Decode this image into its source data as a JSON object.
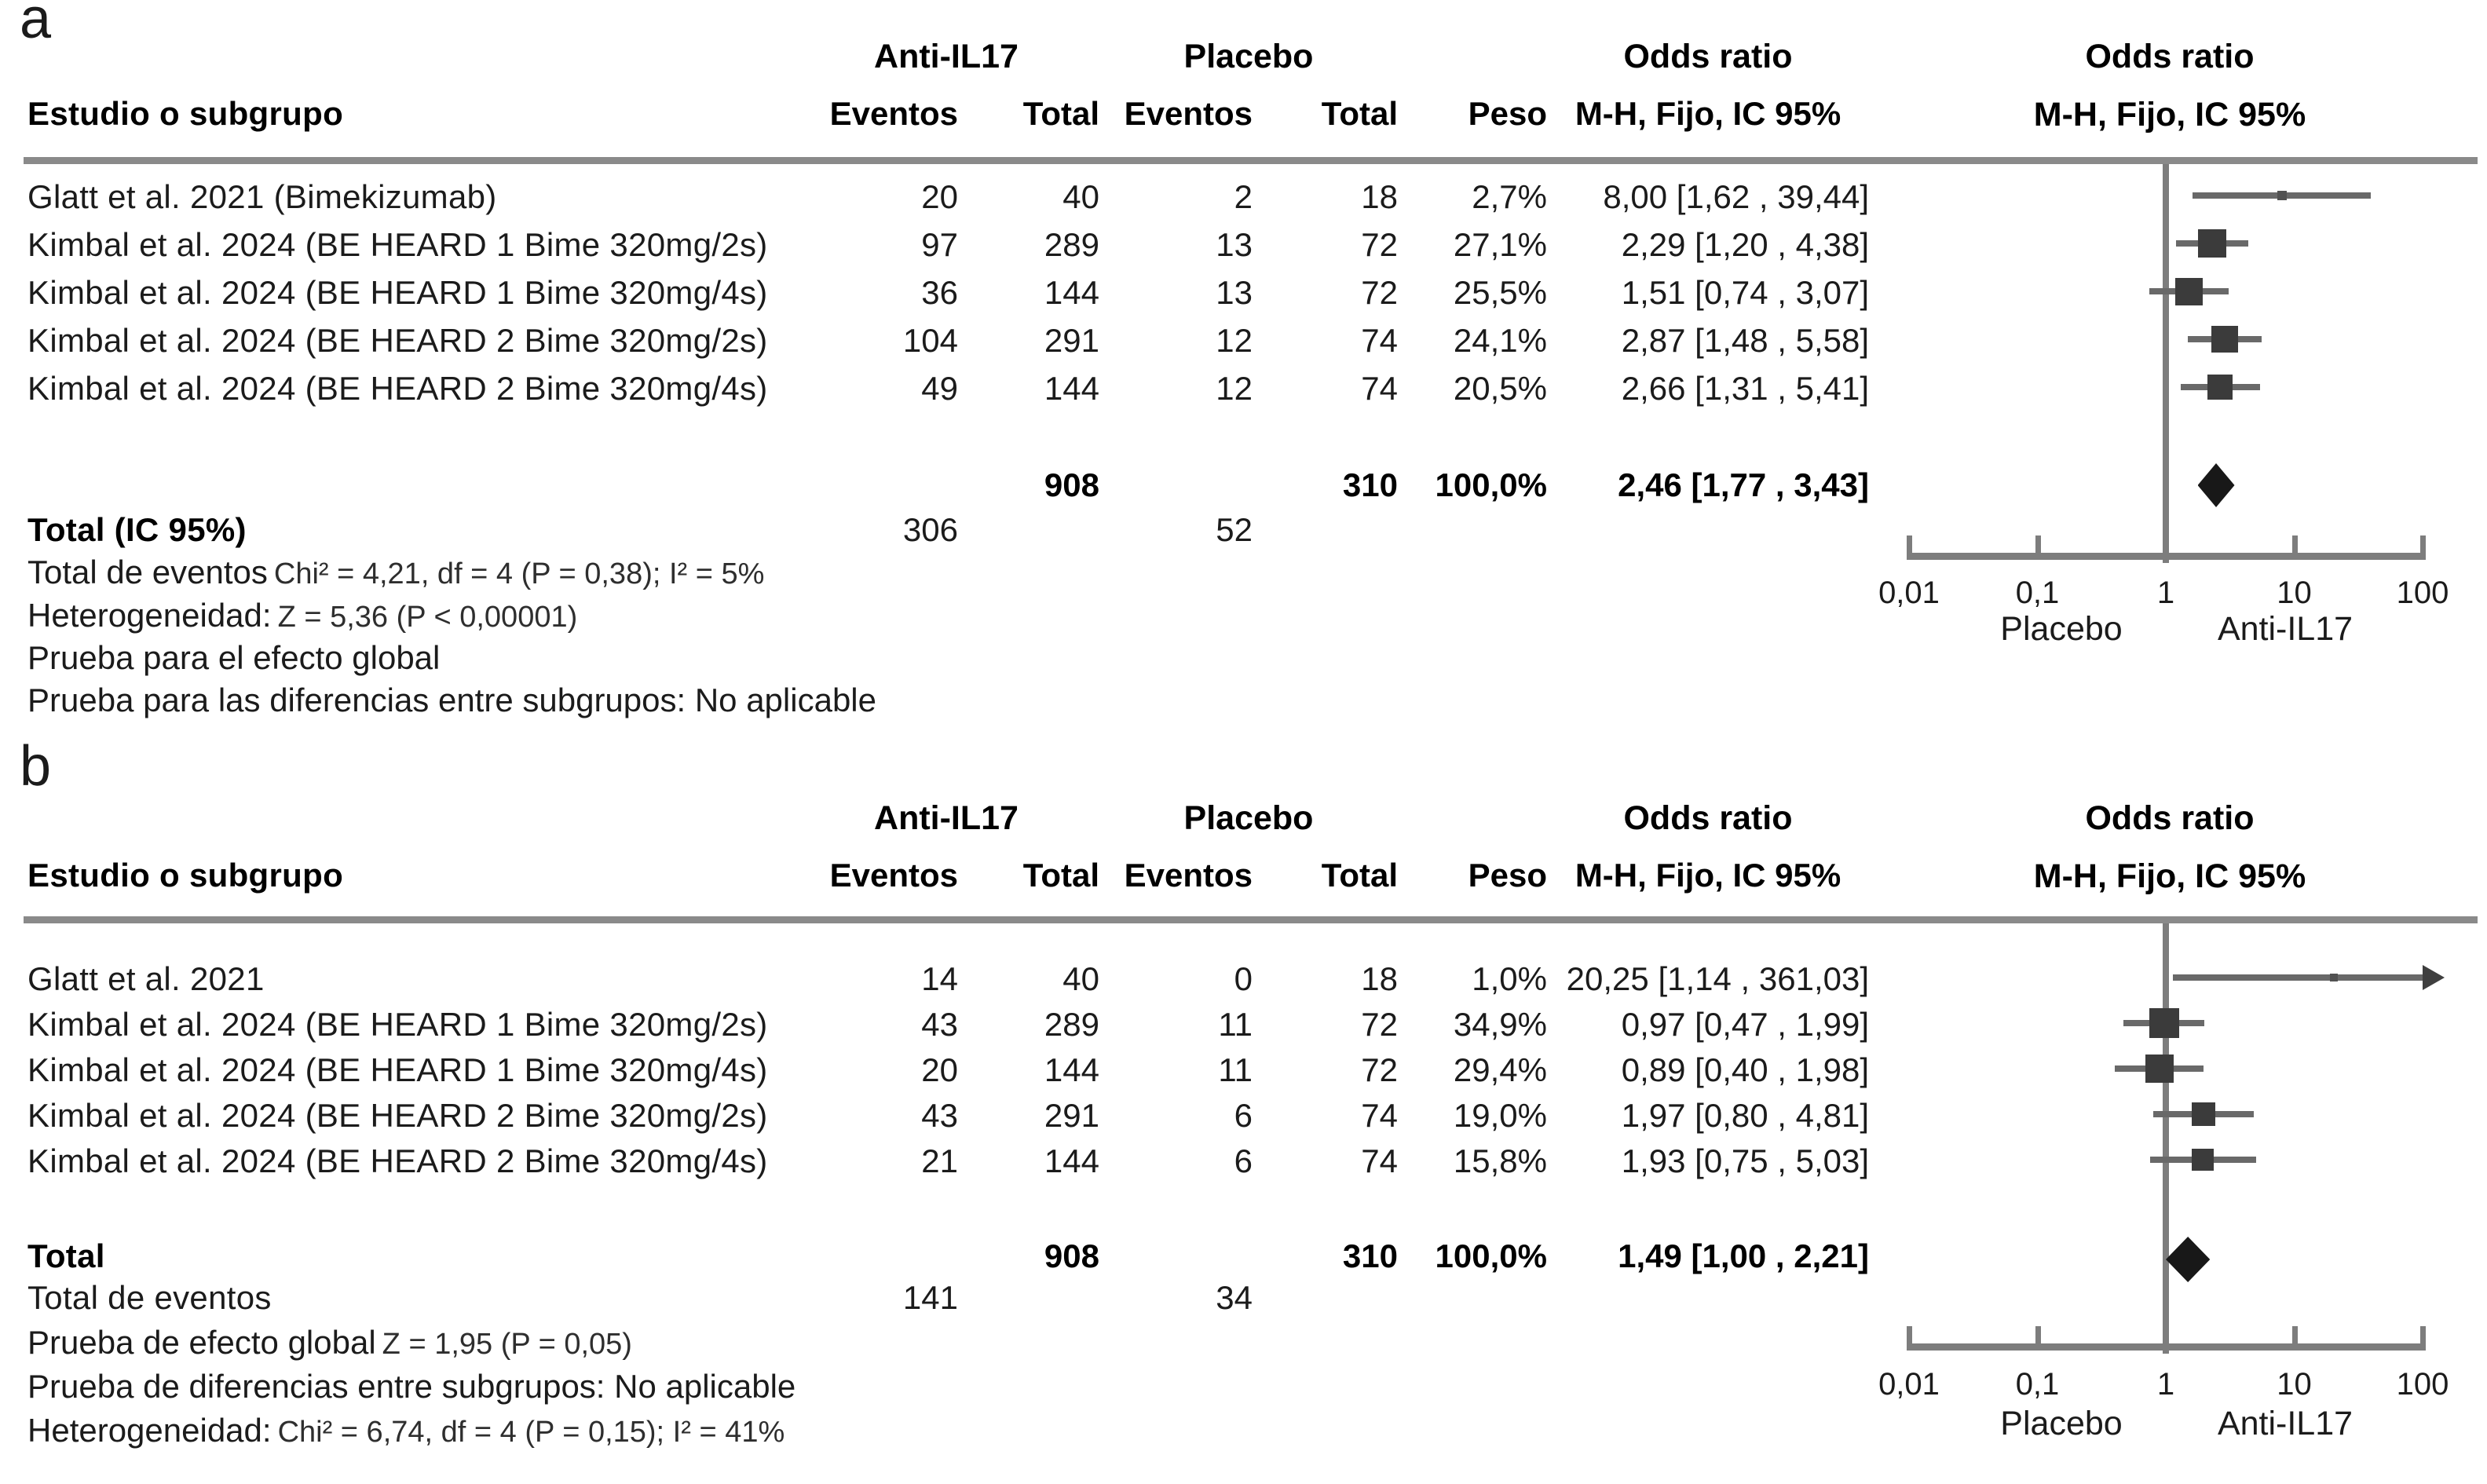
{
  "figure": {
    "panel_a_label": "a",
    "panel_b_label": "b",
    "columns": {
      "study": "Estudio o subgrupo",
      "group1": "Anti-IL17",
      "group2": "Placebo",
      "events": "Eventos",
      "total": "Total",
      "weight": "Peso",
      "or_title": "Odds ratio",
      "or_sub": "M-H, Fijo, IC 95%"
    },
    "axis": {
      "ticks": [
        "0,01",
        "0,1",
        "1",
        "10",
        "100"
      ],
      "left_label": "Placebo",
      "right_label": "Anti-IL17"
    },
    "colors": {
      "rule_gray": "#8a8a8a",
      "line_gray": "#7d7d7d",
      "ci_gray": "#696969",
      "square_dark": "#3b3b3b",
      "diamond_black": "#181818"
    }
  },
  "chart_data": [
    {
      "type": "forest",
      "panel": "a",
      "scale": "log10",
      "axis_range": [
        0.01,
        100
      ],
      "axis_ticks": [
        0.01,
        0.1,
        1,
        10,
        100
      ],
      "rows": [
        {
          "study": "Glatt et al. 2021 (Bimekizumab)",
          "events_t": "20",
          "total_t": "40",
          "events_c": "2",
          "total_c": "18",
          "weight": "2,7%",
          "or_text": "8,00 [1,62 , 39,44]",
          "or": 8.0,
          "lo": 1.62,
          "hi": 39.44
        },
        {
          "study": "Kimbal et al. 2024 (BE HEARD 1 Bime 320mg/2s)",
          "events_t": "97",
          "total_t": "289",
          "events_c": "13",
          "total_c": "72",
          "weight": "27,1%",
          "or_text": "2,29 [1,20 , 4,38]",
          "or": 2.29,
          "lo": 1.2,
          "hi": 4.38
        },
        {
          "study": "Kimbal et al. 2024 (BE HEARD 1 Bime 320mg/4s)",
          "events_t": "36",
          "total_t": "144",
          "events_c": "13",
          "total_c": "72",
          "weight": "25,5%",
          "or_text": "1,51 [0,74 , 3,07]",
          "or": 1.51,
          "lo": 0.74,
          "hi": 3.07
        },
        {
          "study": "Kimbal et al. 2024 (BE HEARD 2 Bime 320mg/2s)",
          "events_t": "104",
          "total_t": "291",
          "events_c": "12",
          "total_c": "74",
          "weight": "24,1%",
          "or_text": "2,87 [1,48 , 5,58]",
          "or": 2.87,
          "lo": 1.48,
          "hi": 5.58
        },
        {
          "study": "Kimbal et al. 2024 (BE HEARD 2 Bime 320mg/4s)",
          "events_t": "49",
          "total_t": "144",
          "events_c": "12",
          "total_c": "74",
          "weight": "20,5%",
          "or_text": "2,66 [1,31 , 5,41]",
          "or": 2.66,
          "lo": 1.31,
          "hi": 5.41
        }
      ],
      "total_row": {
        "label": "",
        "total_t": "908",
        "total_c": "310",
        "weight": "100,0%",
        "or_text": "2,46 [1,77 , 3,43]",
        "or": 2.46,
        "lo": 1.77,
        "hi": 3.43
      },
      "events_row": {
        "label": "Total (IC 95%)",
        "events_t": "306",
        "events_c": "52"
      },
      "footer": [
        {
          "label": "Total de eventos",
          "stats": "Chi² = 4,21, df = 4 (P = 0,38); I² = 5%"
        },
        {
          "label": "Heterogeneidad:",
          "stats": "Z = 5,36 (P < 0,00001)"
        },
        {
          "label": "Prueba para el efecto global",
          "stats": ""
        },
        {
          "label": "Prueba para las diferencias entre subgrupos: No aplicable",
          "stats": ""
        }
      ]
    },
    {
      "type": "forest",
      "panel": "b",
      "scale": "log10",
      "axis_range": [
        0.01,
        100
      ],
      "axis_ticks": [
        0.01,
        0.1,
        1,
        10,
        100
      ],
      "rows": [
        {
          "study": "Glatt et al. 2021",
          "events_t": "14",
          "total_t": "40",
          "events_c": "0",
          "total_c": "18",
          "weight": "1,0%",
          "or_text": "20,25 [1,14 , 361,03]",
          "or": 20.25,
          "lo": 1.14,
          "hi": 361.03
        },
        {
          "study": "Kimbal et al. 2024 (BE HEARD 1 Bime 320mg/2s)",
          "events_t": "43",
          "total_t": "289",
          "events_c": "11",
          "total_c": "72",
          "weight": "34,9%",
          "or_text": "0,97 [0,47 , 1,99]",
          "or": 0.97,
          "lo": 0.47,
          "hi": 1.99
        },
        {
          "study": "Kimbal et al. 2024 (BE HEARD 1 Bime 320mg/4s)",
          "events_t": "20",
          "total_t": "144",
          "events_c": "11",
          "total_c": "72",
          "weight": "29,4%",
          "or_text": "0,89 [0,40 , 1,98]",
          "or": 0.89,
          "lo": 0.4,
          "hi": 1.98
        },
        {
          "study": "Kimbal et al. 2024 (BE HEARD 2 Bime 320mg/2s)",
          "events_t": "43",
          "total_t": "291",
          "events_c": "6",
          "total_c": "74",
          "weight": "19,0%",
          "or_text": "1,97 [0,80 , 4,81]",
          "or": 1.97,
          "lo": 0.8,
          "hi": 4.81
        },
        {
          "study": "Kimbal et al. 2024 (BE HEARD 2 Bime 320mg/4s)",
          "events_t": "21",
          "total_t": "144",
          "events_c": "6",
          "total_c": "74",
          "weight": "15,8%",
          "or_text": "1,93 [0,75 , 5,03]",
          "or": 1.93,
          "lo": 0.75,
          "hi": 5.03
        }
      ],
      "total_row": {
        "label": "Total",
        "total_t": "908",
        "total_c": "310",
        "weight": "100,0%",
        "or_text": "1,49 [1,00 , 2,21]",
        "or": 1.49,
        "lo": 1.0,
        "hi": 2.21
      },
      "events_row": {
        "label": "Total de eventos",
        "events_t": "141",
        "events_c": "34"
      },
      "footer": [
        {
          "label": "Prueba de efecto global",
          "stats": "Z = 1,95 (P = 0,05)"
        },
        {
          "label": "Prueba de diferencias entre subgrupos: No aplicable",
          "stats": ""
        },
        {
          "label": "Heterogeneidad:",
          "stats": "Chi² = 6,74, df = 4 (P = 0,15); I² = 41%"
        }
      ]
    }
  ]
}
